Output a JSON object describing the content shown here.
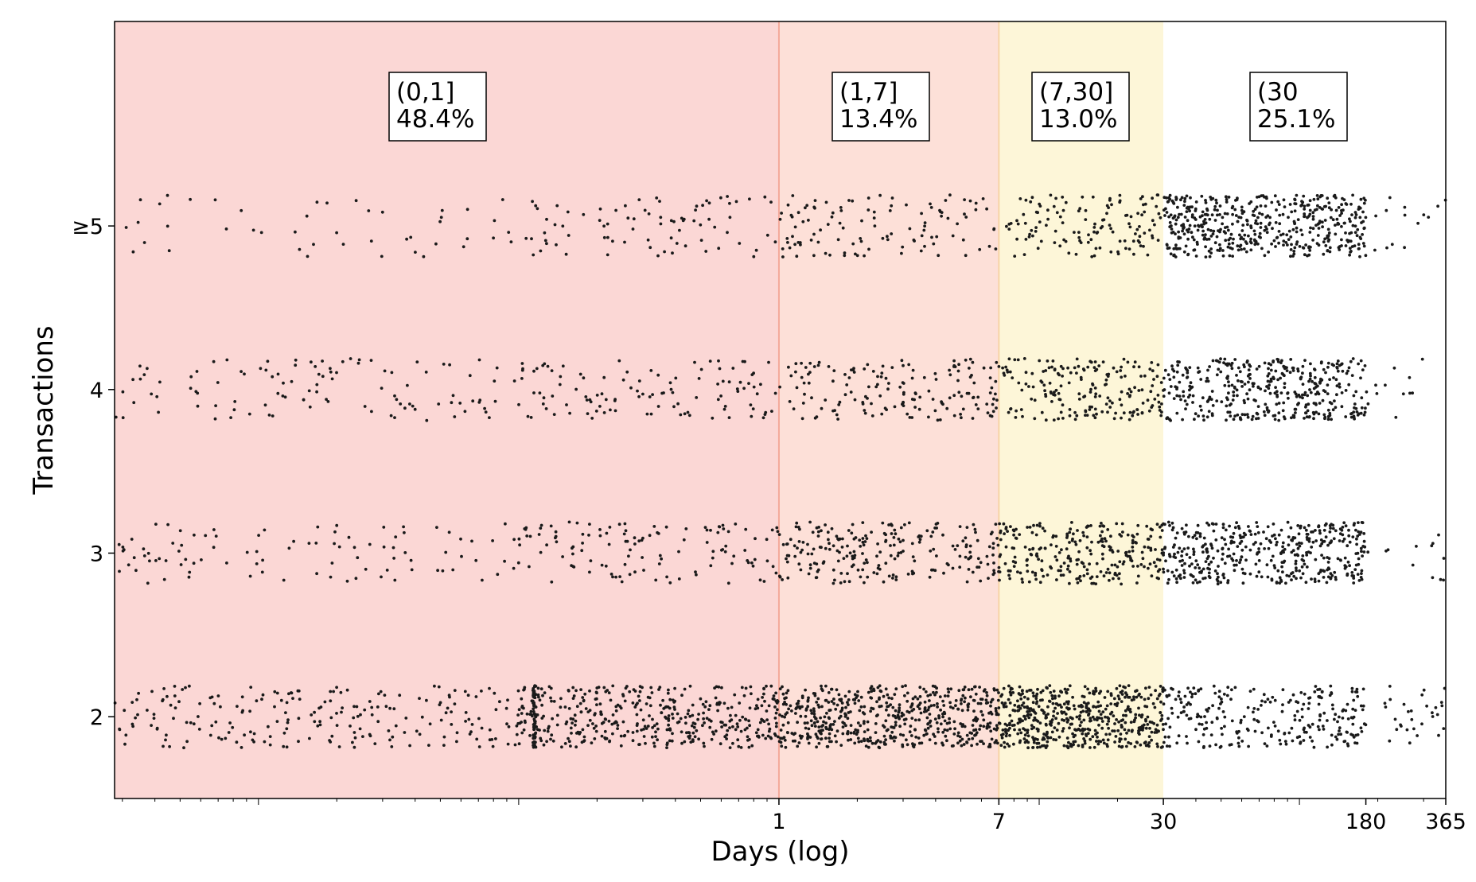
{
  "chart_data": {
    "type": "scatter",
    "xlabel": "Days (log)",
    "ylabel": "Transactions",
    "x_scale": "log",
    "xlim": [
      0.0028,
      365
    ],
    "ylim": [
      1.5,
      6.25
    ],
    "grid": false,
    "x_ticks": [
      {
        "value": 1,
        "label": "1"
      },
      {
        "value": 7,
        "label": "7"
      },
      {
        "value": 30,
        "label": "30"
      },
      {
        "value": 180,
        "label": "180"
      },
      {
        "value": 365,
        "label": "365"
      }
    ],
    "y_ticks": [
      {
        "value": 2,
        "label": "2"
      },
      {
        "value": 3,
        "label": "3"
      },
      {
        "value": 4,
        "label": "4"
      },
      {
        "value": 5,
        "label": "≥5"
      }
    ],
    "bands": [
      {
        "label_range": "(0,1]",
        "label_share": "48.4%",
        "x_start": 0.0028,
        "x_end": 1,
        "share": 48.4,
        "color": "#fbd7d5"
      },
      {
        "label_range": "(1,7]",
        "label_share": "13.4%",
        "x_start": 1,
        "x_end": 7,
        "share": 13.4,
        "color": "#fde0d8"
      },
      {
        "label_range": "(7,30]",
        "label_share": "13.0%",
        "x_start": 7,
        "x_end": 30,
        "share": 13.0,
        "color": "#fdf6d8"
      },
      {
        "label_range": "(30",
        "label_share": "25.1%",
        "x_start": 30,
        "x_end": 365,
        "share": 25.1,
        "color": "#ffffff"
      }
    ],
    "boundary_lines": [
      {
        "x": 1,
        "color": "#f3a99a"
      },
      {
        "x": 7,
        "color": "#f7d3a6"
      }
    ],
    "series": [
      {
        "category": 2,
        "density": [
          {
            "x_start": 0.0028,
            "x_end": 0.1,
            "count": 220
          },
          {
            "x_start": 0.1,
            "x_end": 1,
            "count": 420
          },
          {
            "x_start": 1,
            "x_end": 7,
            "count": 560
          },
          {
            "x_start": 7,
            "x_end": 30,
            "count": 520
          },
          {
            "x_start": 30,
            "x_end": 180,
            "count": 260
          },
          {
            "x_start": 180,
            "x_end": 365,
            "count": 30
          }
        ],
        "cluster": {
          "x": 0.115,
          "count": 70
        },
        "jitter": 0.19
      },
      {
        "category": 3,
        "density": [
          {
            "x_start": 0.0028,
            "x_end": 0.1,
            "count": 95
          },
          {
            "x_start": 0.1,
            "x_end": 1,
            "count": 120
          },
          {
            "x_start": 1,
            "x_end": 7,
            "count": 230
          },
          {
            "x_start": 7,
            "x_end": 30,
            "count": 260
          },
          {
            "x_start": 30,
            "x_end": 180,
            "count": 430
          },
          {
            "x_start": 180,
            "x_end": 365,
            "count": 12
          }
        ],
        "jitter": 0.19
      },
      {
        "category": 4,
        "density": [
          {
            "x_start": 0.0028,
            "x_end": 0.1,
            "count": 105
          },
          {
            "x_start": 0.1,
            "x_end": 1,
            "count": 110
          },
          {
            "x_start": 1,
            "x_end": 7,
            "count": 160
          },
          {
            "x_start": 7,
            "x_end": 30,
            "count": 190
          },
          {
            "x_start": 30,
            "x_end": 180,
            "count": 400
          },
          {
            "x_start": 180,
            "x_end": 365,
            "count": 12
          }
        ],
        "jitter": 0.19
      },
      {
        "category": 5,
        "density": [
          {
            "x_start": 0.0028,
            "x_end": 0.1,
            "count": 45
          },
          {
            "x_start": 0.1,
            "x_end": 1,
            "count": 80
          },
          {
            "x_start": 1,
            "x_end": 7,
            "count": 110
          },
          {
            "x_start": 7,
            "x_end": 30,
            "count": 130
          },
          {
            "x_start": 30,
            "x_end": 180,
            "count": 500
          },
          {
            "x_start": 180,
            "x_end": 365,
            "count": 14
          }
        ],
        "jitter": 0.19
      }
    ],
    "point_color": "#1a1a1a"
  }
}
